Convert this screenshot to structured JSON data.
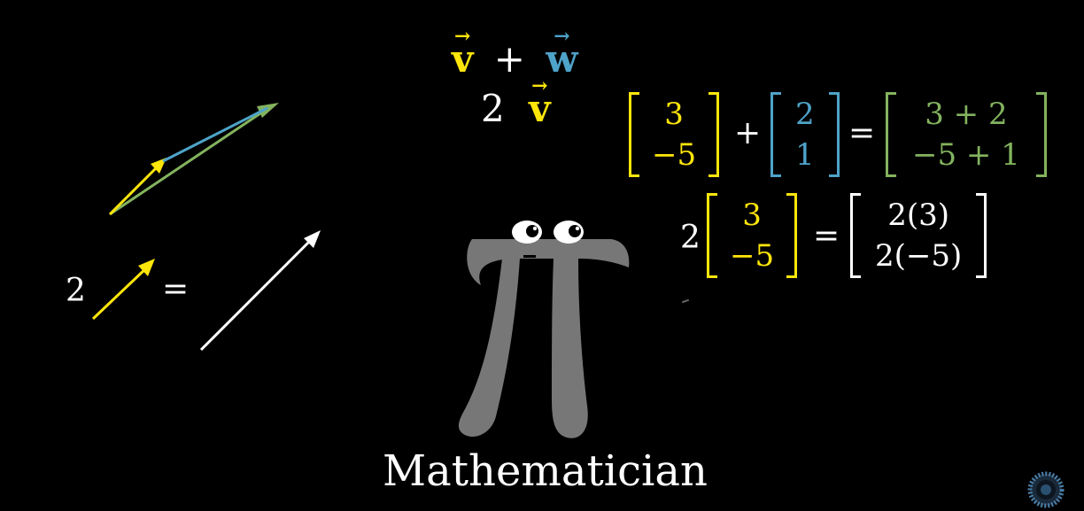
{
  "colors": {
    "background": "#000000",
    "yellow": "#ffe60a",
    "blue": "#4ea3c9",
    "green": "#83b35e",
    "white": "#ffffff",
    "pi_gray": "#777777"
  },
  "top_expressions": {
    "sum": {
      "v": "v",
      "plus": "+",
      "w": "w"
    },
    "scalar": {
      "two": "2",
      "v": "v"
    }
  },
  "left_diagram": {
    "scalar_label": "2",
    "equals": "="
  },
  "vector_sum_equation": {
    "v": [
      "3",
      "−5"
    ],
    "plus": "+",
    "w": [
      "2",
      "1"
    ],
    "equals": "=",
    "result": [
      "3 + 2",
      "−5 + 1"
    ]
  },
  "scalar_equation": {
    "scalar": "2",
    "v": [
      "3",
      "−5"
    ],
    "equals": "=",
    "result": [
      "2(3)",
      "2(−5)"
    ]
  },
  "character_label": "Mathematician",
  "icons": {
    "pi_character": "pi-creature",
    "corner_logo": "spinning-logo"
  }
}
